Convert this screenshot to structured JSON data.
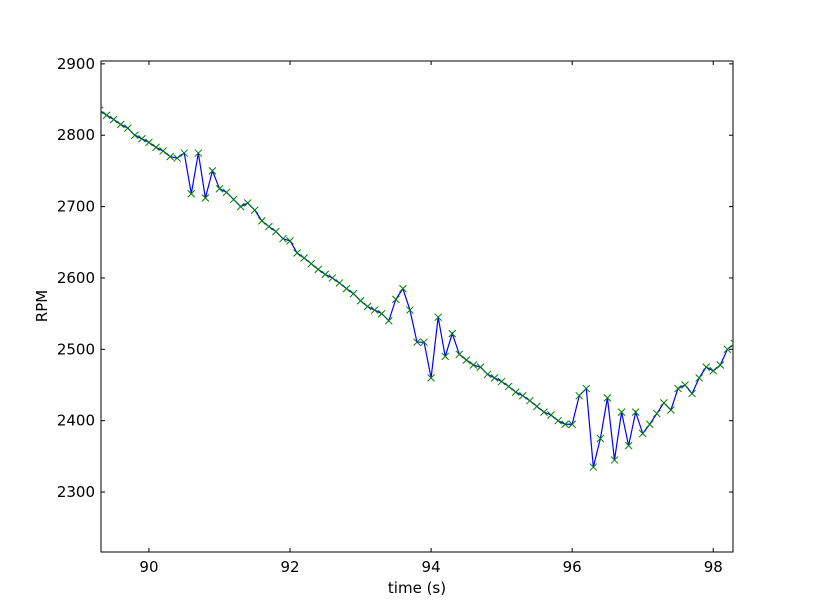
{
  "chart_data": {
    "type": "line",
    "xlabel": "time (s)",
    "ylabel": "RPM",
    "xlim": [
      89.32,
      98.28
    ],
    "ylim": [
      2216,
      2904
    ],
    "xticks": [
      90,
      92,
      94,
      96,
      98
    ],
    "yticks": [
      2300,
      2400,
      2500,
      2600,
      2700,
      2800,
      2900
    ],
    "x": [
      89.3,
      89.4,
      89.5,
      89.6,
      89.7,
      89.8,
      89.9,
      90.0,
      90.1,
      90.2,
      90.3,
      90.4,
      90.5,
      90.6,
      90.7,
      90.8,
      90.9,
      91.0,
      91.1,
      91.2,
      91.3,
      91.4,
      91.5,
      91.6,
      91.7,
      91.8,
      91.9,
      92.0,
      92.1,
      92.2,
      92.3,
      92.4,
      92.5,
      92.6,
      92.7,
      92.8,
      92.9,
      93.0,
      93.1,
      93.2,
      93.3,
      93.4,
      93.5,
      93.6,
      93.7,
      93.8,
      93.9,
      94.0,
      94.1,
      94.2,
      94.3,
      94.4,
      94.5,
      94.6,
      94.7,
      94.8,
      94.9,
      95.0,
      95.1,
      95.2,
      95.3,
      95.4,
      95.5,
      95.6,
      95.7,
      95.8,
      95.9,
      96.0,
      96.1,
      96.2,
      96.3,
      96.4,
      96.5,
      96.6,
      96.7,
      96.8,
      96.9,
      97.0,
      97.1,
      97.2,
      97.3,
      97.4,
      97.5,
      97.6,
      97.7,
      97.8,
      97.9,
      98.0,
      98.1,
      98.2,
      98.3
    ],
    "series": [
      {
        "color": "#0000ff",
        "marker_color": "#008000",
        "values": [
          2835,
          2828,
          2822,
          2815,
          2810,
          2800,
          2795,
          2790,
          2783,
          2778,
          2770,
          2768,
          2775,
          2718,
          2775,
          2712,
          2750,
          2725,
          2720,
          2710,
          2700,
          2705,
          2695,
          2680,
          2672,
          2665,
          2655,
          2652,
          2635,
          2628,
          2620,
          2612,
          2605,
          2600,
          2593,
          2585,
          2578,
          2568,
          2560,
          2555,
          2550,
          2540,
          2570,
          2585,
          2555,
          2510,
          2510,
          2460,
          2545,
          2490,
          2522,
          2493,
          2485,
          2478,
          2475,
          2465,
          2460,
          2455,
          2448,
          2440,
          2435,
          2428,
          2420,
          2412,
          2408,
          2400,
          2395,
          2395,
          2435,
          2445,
          2335,
          2375,
          2432,
          2345,
          2412,
          2365,
          2412,
          2382,
          2395,
          2410,
          2425,
          2415,
          2445,
          2450,
          2438,
          2460,
          2475,
          2470,
          2478,
          2500,
          2508
        ]
      }
    ]
  }
}
